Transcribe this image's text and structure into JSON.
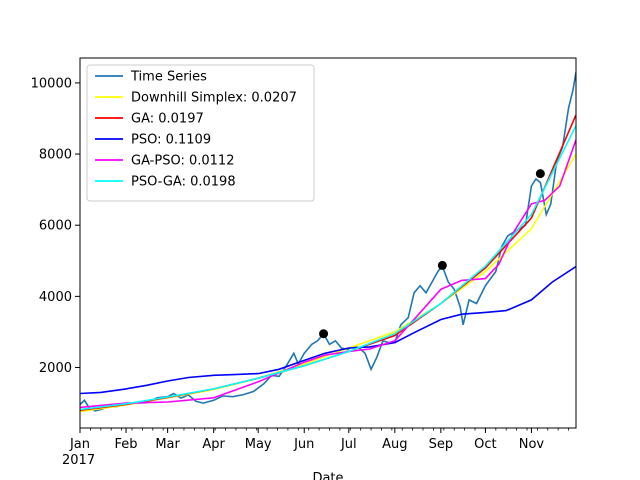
{
  "chart_data": {
    "type": "line",
    "title": "",
    "xlabel": "Date",
    "ylabel": "",
    "x_range": [
      "2017-01-01",
      "2017-12-01"
    ],
    "ylim": [
      300,
      10700
    ],
    "year_label": "2017",
    "x_ticks": [
      {
        "date": "2017-01-01",
        "label": "Jan"
      },
      {
        "date": "2017-02-01",
        "label": "Feb"
      },
      {
        "date": "2017-03-01",
        "label": "Mar"
      },
      {
        "date": "2017-04-01",
        "label": "Apr"
      },
      {
        "date": "2017-05-01",
        "label": "May"
      },
      {
        "date": "2017-06-01",
        "label": "Jun"
      },
      {
        "date": "2017-07-01",
        "label": "Jul"
      },
      {
        "date": "2017-08-01",
        "label": "Aug"
      },
      {
        "date": "2017-09-01",
        "label": "Sep"
      },
      {
        "date": "2017-10-01",
        "label": "Oct"
      },
      {
        "date": "2017-11-01",
        "label": "Nov"
      }
    ],
    "y_ticks": [
      {
        "value": 2000,
        "label": "2000"
      },
      {
        "value": 4000,
        "label": "4000"
      },
      {
        "value": 6000,
        "label": "6000"
      },
      {
        "value": 8000,
        "label": "8000"
      },
      {
        "value": 10000,
        "label": "10000"
      }
    ],
    "grid": false,
    "legend_position": "top-left",
    "series": [
      {
        "name": "Time Series",
        "color": "#1f77b4",
        "points": [
          [
            "2017-01-01",
            960
          ],
          [
            "2017-01-04",
            1080
          ],
          [
            "2017-01-07",
            880
          ],
          [
            "2017-01-11",
            780
          ],
          [
            "2017-01-15",
            820
          ],
          [
            "2017-01-20",
            900
          ],
          [
            "2017-01-25",
            900
          ],
          [
            "2017-02-01",
            970
          ],
          [
            "2017-02-08",
            1000
          ],
          [
            "2017-02-15",
            1010
          ],
          [
            "2017-02-22",
            1150
          ],
          [
            "2017-03-01",
            1180
          ],
          [
            "2017-03-05",
            1270
          ],
          [
            "2017-03-10",
            1140
          ],
          [
            "2017-03-15",
            1230
          ],
          [
            "2017-03-20",
            1050
          ],
          [
            "2017-03-25",
            1000
          ],
          [
            "2017-04-01",
            1080
          ],
          [
            "2017-04-07",
            1200
          ],
          [
            "2017-04-14",
            1180
          ],
          [
            "2017-04-21",
            1240
          ],
          [
            "2017-04-28",
            1330
          ],
          [
            "2017-05-05",
            1550
          ],
          [
            "2017-05-10",
            1780
          ],
          [
            "2017-05-15",
            1750
          ],
          [
            "2017-05-20",
            2050
          ],
          [
            "2017-05-25",
            2400
          ],
          [
            "2017-05-28",
            2100
          ],
          [
            "2017-06-01",
            2400
          ],
          [
            "2017-06-06",
            2650
          ],
          [
            "2017-06-10",
            2750
          ],
          [
            "2017-06-14",
            2950
          ],
          [
            "2017-06-18",
            2650
          ],
          [
            "2017-06-22",
            2750
          ],
          [
            "2017-06-26",
            2550
          ],
          [
            "2017-06-30",
            2500
          ],
          [
            "2017-07-04",
            2600
          ],
          [
            "2017-07-08",
            2550
          ],
          [
            "2017-07-12",
            2400
          ],
          [
            "2017-07-16",
            1950
          ],
          [
            "2017-07-20",
            2300
          ],
          [
            "2017-07-24",
            2750
          ],
          [
            "2017-07-28",
            2700
          ],
          [
            "2017-08-01",
            2700
          ],
          [
            "2017-08-05",
            3200
          ],
          [
            "2017-08-10",
            3400
          ],
          [
            "2017-08-14",
            4100
          ],
          [
            "2017-08-18",
            4300
          ],
          [
            "2017-08-22",
            4100
          ],
          [
            "2017-08-26",
            4400
          ],
          [
            "2017-08-30",
            4700
          ],
          [
            "2017-09-02",
            4850
          ],
          [
            "2017-09-06",
            4400
          ],
          [
            "2017-09-10",
            4200
          ],
          [
            "2017-09-14",
            3700
          ],
          [
            "2017-09-16",
            3200
          ],
          [
            "2017-09-20",
            3900
          ],
          [
            "2017-09-25",
            3800
          ],
          [
            "2017-10-01",
            4300
          ],
          [
            "2017-10-08",
            4700
          ],
          [
            "2017-10-12",
            5400
          ],
          [
            "2017-10-16",
            5700
          ],
          [
            "2017-10-20",
            5800
          ],
          [
            "2017-10-24",
            5900
          ],
          [
            "2017-10-28",
            6000
          ],
          [
            "2017-11-01",
            7100
          ],
          [
            "2017-11-04",
            7300
          ],
          [
            "2017-11-07",
            7200
          ],
          [
            "2017-11-11",
            6300
          ],
          [
            "2017-11-14",
            6600
          ],
          [
            "2017-11-18",
            7800
          ],
          [
            "2017-11-22",
            8200
          ],
          [
            "2017-11-26",
            9300
          ],
          [
            "2017-11-29",
            9800
          ],
          [
            "2017-12-01",
            10300
          ]
        ]
      },
      {
        "name": "Downhill Simplex: 0.0207",
        "color": "#ffff00",
        "points": [
          [
            "2017-01-01",
            760
          ],
          [
            "2017-02-01",
            950
          ],
          [
            "2017-03-01",
            1150
          ],
          [
            "2017-04-01",
            1380
          ],
          [
            "2017-05-01",
            1700
          ],
          [
            "2017-06-01",
            2100
          ],
          [
            "2017-07-01",
            2550
          ],
          [
            "2017-08-01",
            3000
          ],
          [
            "2017-09-01",
            3800
          ],
          [
            "2017-10-01",
            4700
          ],
          [
            "2017-11-01",
            5900
          ],
          [
            "2017-12-01",
            8000
          ]
        ]
      },
      {
        "name": "GA: 0.0197",
        "color": "#ff0000",
        "points": [
          [
            "2017-01-01",
            800
          ],
          [
            "2017-02-01",
            960
          ],
          [
            "2017-03-01",
            1160
          ],
          [
            "2017-04-01",
            1400
          ],
          [
            "2017-05-01",
            1700
          ],
          [
            "2017-06-01",
            2050
          ],
          [
            "2017-07-01",
            2450
          ],
          [
            "2017-08-01",
            2900
          ],
          [
            "2017-09-01",
            3800
          ],
          [
            "2017-10-01",
            4800
          ],
          [
            "2017-11-01",
            6200
          ],
          [
            "2017-12-01",
            9100
          ]
        ]
      },
      {
        "name": "PSO: 0.1109",
        "color": "#0000ff",
        "points": [
          [
            "2017-01-01",
            1270
          ],
          [
            "2017-01-15",
            1300
          ],
          [
            "2017-02-01",
            1400
          ],
          [
            "2017-02-15",
            1500
          ],
          [
            "2017-03-01",
            1620
          ],
          [
            "2017-03-15",
            1720
          ],
          [
            "2017-04-01",
            1780
          ],
          [
            "2017-04-15",
            1800
          ],
          [
            "2017-05-01",
            1830
          ],
          [
            "2017-05-15",
            1950
          ],
          [
            "2017-06-01",
            2200
          ],
          [
            "2017-06-15",
            2400
          ],
          [
            "2017-07-01",
            2550
          ],
          [
            "2017-07-15",
            2580
          ],
          [
            "2017-08-01",
            2700
          ],
          [
            "2017-08-15",
            3000
          ],
          [
            "2017-09-01",
            3350
          ],
          [
            "2017-09-15",
            3500
          ],
          [
            "2017-10-01",
            3550
          ],
          [
            "2017-10-15",
            3600
          ],
          [
            "2017-11-01",
            3900
          ],
          [
            "2017-11-15",
            4400
          ],
          [
            "2017-12-01",
            4840
          ]
        ]
      },
      {
        "name": "GA-PSO: 0.0112",
        "color": "#ff00ff",
        "points": [
          [
            "2017-01-01",
            880
          ],
          [
            "2017-02-01",
            1000
          ],
          [
            "2017-03-01",
            1030
          ],
          [
            "2017-04-01",
            1150
          ],
          [
            "2017-05-01",
            1600
          ],
          [
            "2017-06-01",
            2150
          ],
          [
            "2017-06-15",
            2350
          ],
          [
            "2017-07-01",
            2450
          ],
          [
            "2017-07-15",
            2520
          ],
          [
            "2017-08-01",
            2750
          ],
          [
            "2017-08-15",
            3400
          ],
          [
            "2017-09-01",
            4200
          ],
          [
            "2017-09-15",
            4450
          ],
          [
            "2017-10-01",
            4500
          ],
          [
            "2017-10-10",
            4900
          ],
          [
            "2017-10-20",
            5800
          ],
          [
            "2017-11-01",
            6600
          ],
          [
            "2017-11-10",
            6700
          ],
          [
            "2017-11-20",
            7100
          ],
          [
            "2017-12-01",
            8400
          ]
        ]
      },
      {
        "name": "PSO-GA: 0.0198",
        "color": "#00ffff",
        "points": [
          [
            "2017-01-01",
            820
          ],
          [
            "2017-02-01",
            980
          ],
          [
            "2017-03-01",
            1170
          ],
          [
            "2017-04-01",
            1400
          ],
          [
            "2017-05-01",
            1700
          ],
          [
            "2017-06-01",
            2050
          ],
          [
            "2017-07-01",
            2450
          ],
          [
            "2017-08-01",
            2950
          ],
          [
            "2017-09-01",
            3800
          ],
          [
            "2017-10-01",
            4850
          ],
          [
            "2017-11-01",
            6300
          ],
          [
            "2017-12-01",
            8800
          ]
        ]
      }
    ],
    "markers": {
      "color": "#000000",
      "points": [
        [
          "2017-06-14",
          2950
        ],
        [
          "2017-09-02",
          4870
        ],
        [
          "2017-11-07",
          7450
        ]
      ]
    }
  }
}
